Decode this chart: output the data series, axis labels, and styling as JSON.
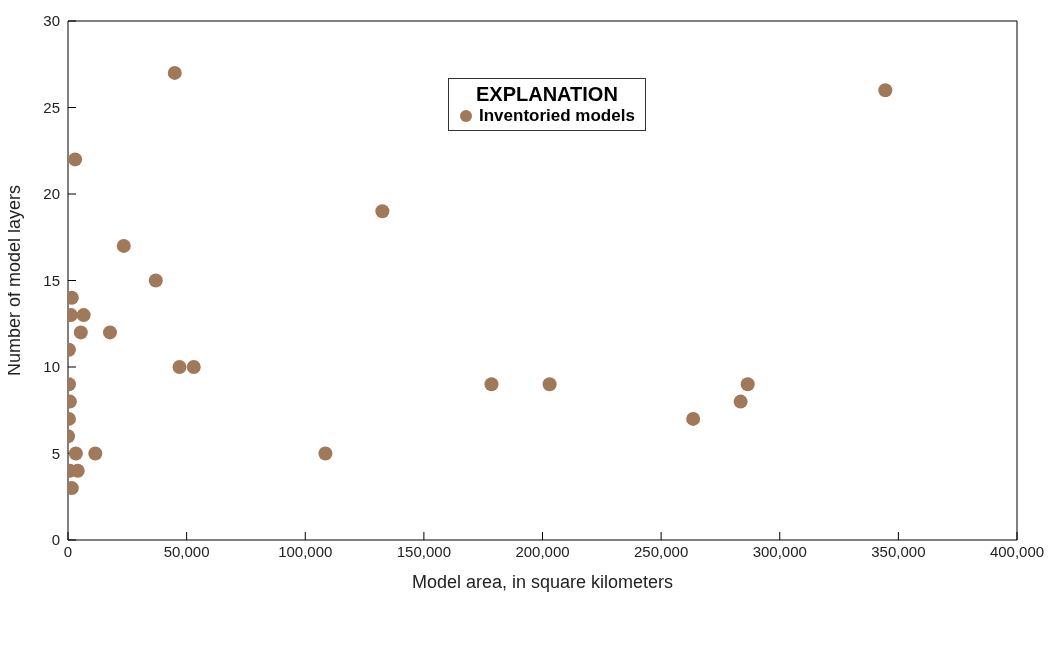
{
  "chart_data": {
    "type": "scatter",
    "xlabel": "Model area, in square kilometers",
    "ylabel": "Number of model layers",
    "legend_title": "EXPLANATION",
    "legend": "top",
    "grid": false,
    "marker": "circle",
    "xlim": [
      0,
      400000
    ],
    "xticks": [
      {
        "value": 0,
        "label": "0"
      },
      {
        "value": 50000,
        "label": "50,000"
      },
      {
        "value": 100000,
        "label": "100,000"
      },
      {
        "value": 150000,
        "label": "150,000"
      },
      {
        "value": 200000,
        "label": "200,000"
      },
      {
        "value": 250000,
        "label": "250,000"
      },
      {
        "value": 300000,
        "label": "300,000"
      },
      {
        "value": 350000,
        "label": "350,000"
      },
      {
        "value": 400000,
        "label": "400,000"
      }
    ],
    "ylim": [
      0,
      30
    ],
    "yticks": [
      0,
      5,
      10,
      15,
      20,
      25,
      30
    ],
    "series": [
      {
        "name": "Inventoried models",
        "color": "#a0785a",
        "x": [
          45000,
          3000,
          23500,
          37000,
          1600,
          1200,
          6600,
          17700,
          5400,
          400,
          47000,
          53000,
          400,
          800,
          400,
          0,
          3300,
          11500,
          800,
          4100,
          1600,
          132500,
          108500,
          178500,
          203000,
          263500,
          283500,
          286500,
          344500
        ],
        "values": [
          27,
          22,
          17,
          15,
          14,
          13,
          13,
          12,
          12,
          11,
          10,
          10,
          9,
          8,
          7,
          6,
          5,
          5,
          4,
          4,
          3,
          19,
          5,
          9,
          9,
          7,
          8,
          9,
          26
        ]
      }
    ]
  }
}
